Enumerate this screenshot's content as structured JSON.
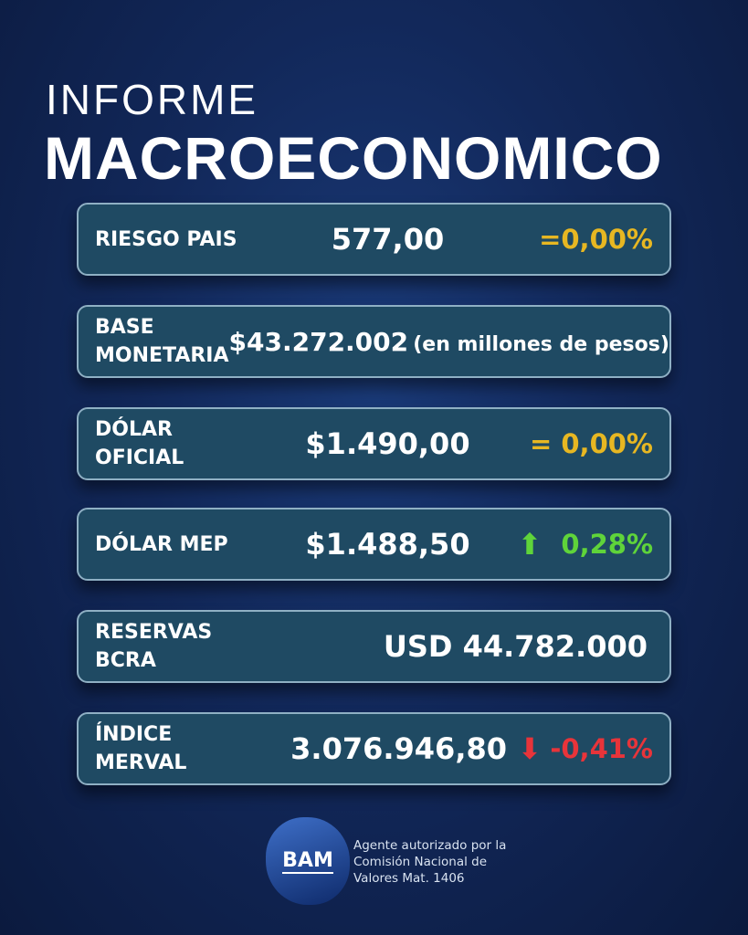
{
  "header": {
    "title_line1": "INFORME",
    "title_line2": "MACROECONOMICO"
  },
  "cards": [
    {
      "label": "RIESGO PAIS",
      "value": "577,00",
      "change": "=0,00%",
      "trend": "neutral"
    },
    {
      "label_line1": "BASE",
      "label_line2": "MONETARIA",
      "value": "$43.272.002",
      "unit": "(en millones de pesos)"
    },
    {
      "label_line1": "DÓLAR",
      "label_line2": "OFICIAL",
      "value": "$1.490,00",
      "change": "= 0,00%",
      "trend": "neutral"
    },
    {
      "label": "DÓLAR MEP",
      "value": "$1.488,50",
      "change": "0,28%",
      "trend": "up",
      "icon": "arrow-up-icon"
    },
    {
      "label_line1": "RESERVAS",
      "label_line2": "BCRA",
      "value": "USD 44.782.000"
    },
    {
      "label_line1": "ÍNDICE",
      "label_line2": "MERVAL",
      "value": "3.076.946,80",
      "change": "-0,41%",
      "trend": "down",
      "icon": "arrow-down-icon"
    }
  ],
  "footer": {
    "logo_text": "BAM",
    "line1": "Agente autorizado por la",
    "line2": "Comisión Nacional de",
    "line3": "Valores Mat. 1406"
  },
  "colors": {
    "neutral": "#e7b722",
    "up": "#5fd43a",
    "down": "#e8343a",
    "card": "#1f4a63"
  }
}
